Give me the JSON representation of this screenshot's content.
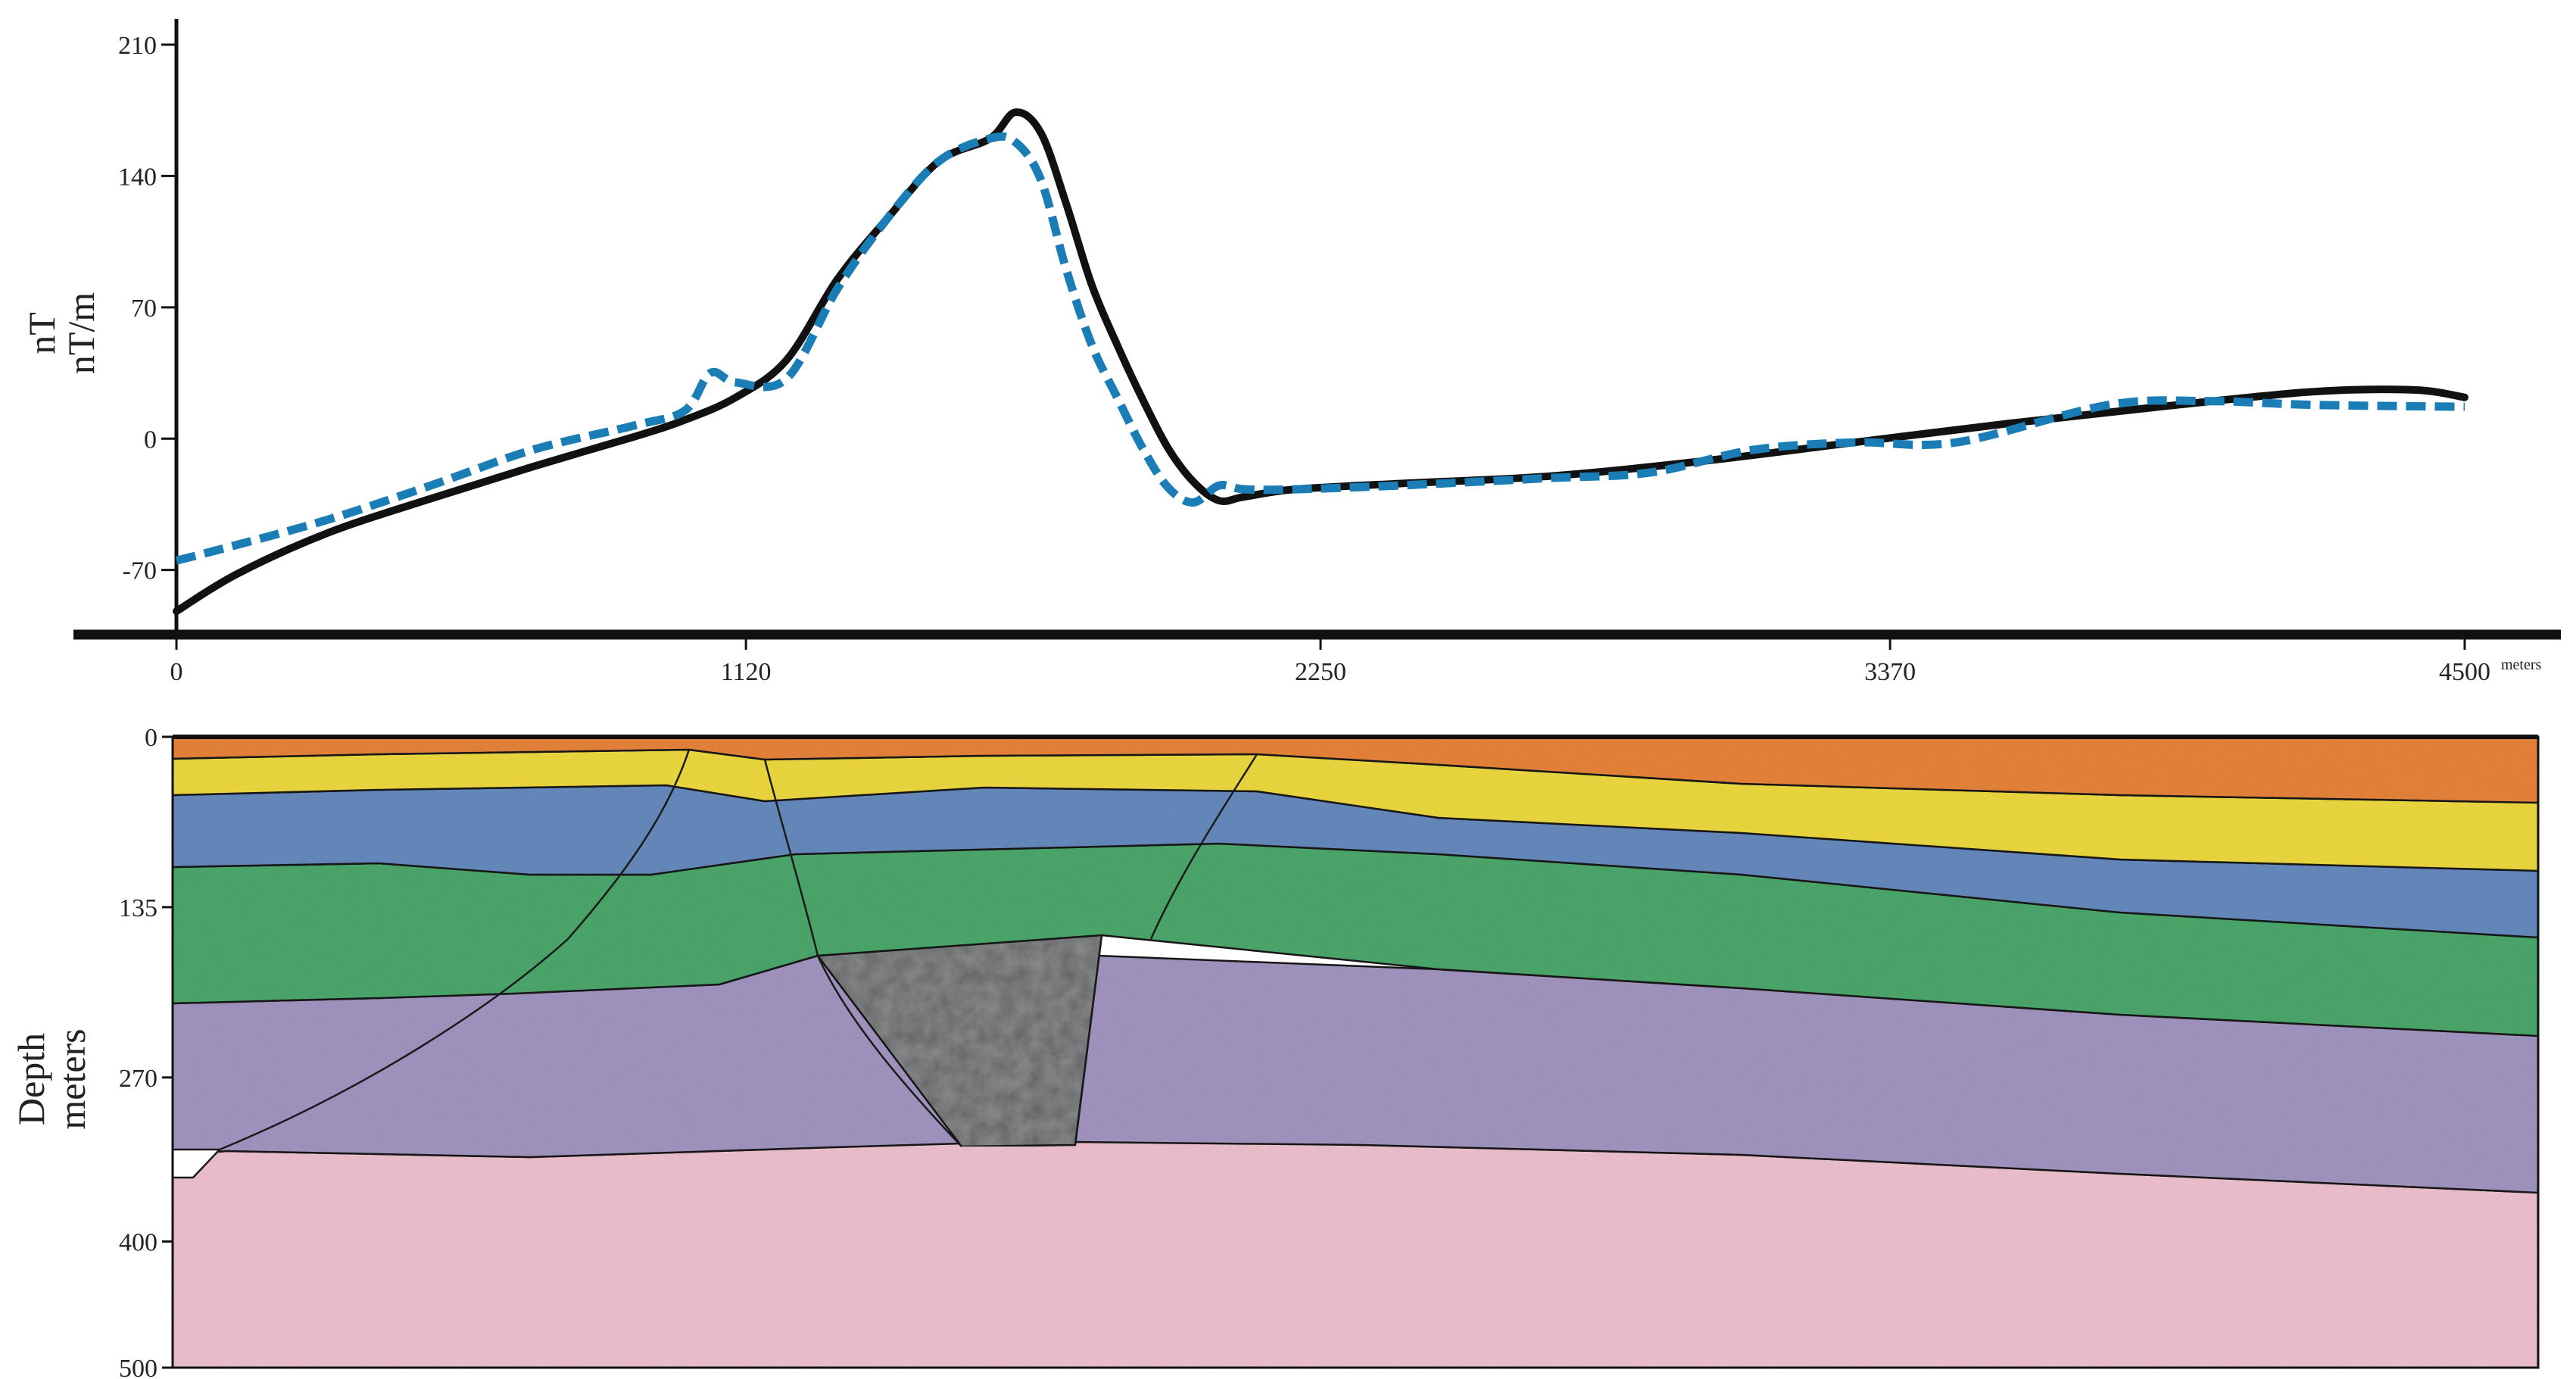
{
  "chart_data": [
    {
      "type": "line",
      "ylabel": [
        "nT",
        "nT/m"
      ],
      "x_unit": "meters",
      "xlim": [
        0,
        4500
      ],
      "ylim": [
        -100,
        210
      ],
      "x_ticks": [
        0,
        1120,
        2250,
        3370,
        4500
      ],
      "x_tick_labels": [
        "0",
        "1120",
        "2250",
        "3370",
        "4500"
      ],
      "y_ticks": [
        210,
        140,
        70,
        0,
        -70
      ],
      "y_tick_labels": [
        "210",
        "140",
        "70",
        "0",
        "-70"
      ],
      "grid": false,
      "series": [
        {
          "style": "solid",
          "color": "#111111",
          "x": [
            0,
            120,
            300,
            500,
            700,
            900,
            1000,
            1100,
            1200,
            1300,
            1400,
            1500,
            1600,
            1650,
            1700,
            1750,
            1800,
            1850,
            1900,
            1950,
            2000,
            2050,
            2100,
            2200,
            2400,
            2700,
            3000,
            3300,
            3600,
            3900,
            4200,
            4400,
            4500
          ],
          "y": [
            -92,
            -72,
            -50,
            -32,
            -15,
            1,
            10,
            22,
            42,
            85,
            118,
            148,
            160,
            174,
            163,
            125,
            82,
            50,
            21,
            -5,
            -23,
            -33,
            -31,
            -27,
            -24,
            -20,
            -12,
            -2,
            8,
            17,
            25,
            26,
            22
          ]
        },
        {
          "style": "dashed",
          "color": "#1a7db5",
          "x": [
            0,
            100,
            300,
            500,
            700,
            900,
            1000,
            1050,
            1100,
            1200,
            1300,
            1400,
            1500,
            1600,
            1650,
            1700,
            1750,
            1800,
            1850,
            1900,
            1950,
            2000,
            2050,
            2100,
            2200,
            2400,
            2700,
            2900,
            3100,
            3300,
            3500,
            3800,
            4000,
            4200,
            4500
          ],
          "y": [
            -65,
            -58,
            -43,
            -25,
            -6,
            7,
            15,
            35,
            30,
            32,
            80,
            118,
            148,
            160,
            158,
            138,
            90,
            50,
            22,
            -5,
            -26,
            -34,
            -25,
            -27,
            -27,
            -25,
            -21,
            -18,
            -6,
            -2,
            -2,
            18,
            20,
            18,
            17
          ]
        }
      ]
    },
    {
      "type": "area",
      "ylabel": [
        "Depth",
        "meters"
      ],
      "y_ticks": [
        0,
        135,
        270,
        400,
        500
      ],
      "y_tick_labels": [
        "0",
        "135",
        "270",
        "400",
        "500"
      ],
      "ylim": [
        0,
        500
      ],
      "layers": [
        {
          "name": "",
          "color": "#f0883c"
        },
        {
          "name": "",
          "color": "#f6e142"
        },
        {
          "name": "",
          "color": "#6a8fc4"
        },
        {
          "name": "",
          "color": "#4fae70"
        },
        {
          "name": "",
          "color": "#a89bc9"
        },
        {
          "name": "",
          "color": "#8a8c8e"
        },
        {
          "name": "",
          "color": "#f7c8d6"
        }
      ]
    }
  ]
}
